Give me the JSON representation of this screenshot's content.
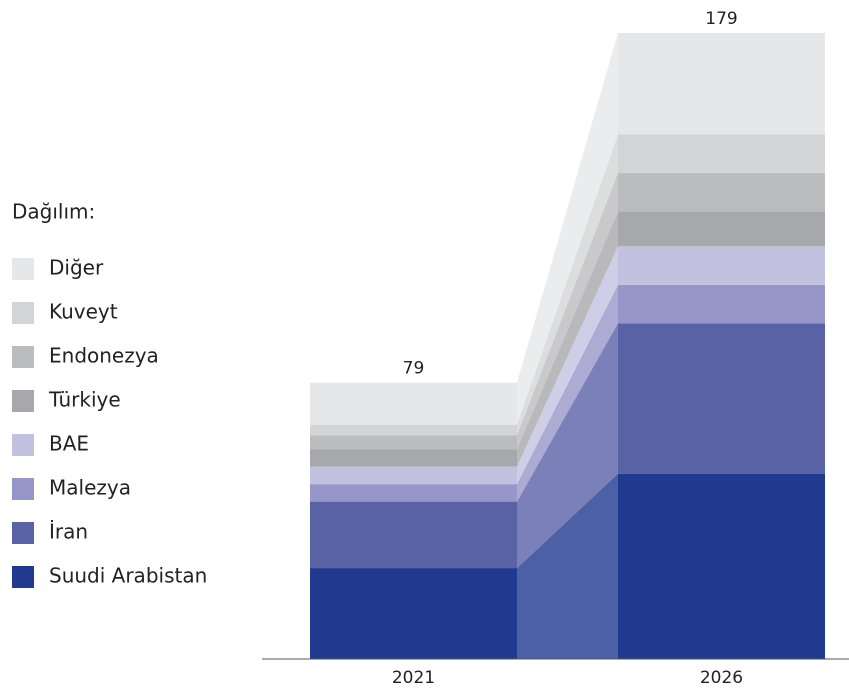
{
  "chart_data": {
    "type": "stacked-bar",
    "legend_title": "Dağılım:",
    "categories": [
      "2021",
      "2026"
    ],
    "totals": [
      79,
      179
    ],
    "series": [
      {
        "name": "Suudi Arabistan",
        "color": "#1f3a8f",
        "values": [
          26,
          53
        ]
      },
      {
        "name": "İran",
        "color": "#5a62a6",
        "values": [
          19,
          43
        ]
      },
      {
        "name": "Malezya",
        "color": "#9796c8",
        "values": [
          5,
          11
        ]
      },
      {
        "name": "BAE",
        "color": "#c2c2e0",
        "values": [
          5,
          11
        ]
      },
      {
        "name": "Türkiye",
        "color": "#a7a8ab",
        "values": [
          5,
          10
        ]
      },
      {
        "name": "Endonezya",
        "color": "#bbbcbe",
        "values": [
          4,
          11
        ]
      },
      {
        "name": "Kuveyt",
        "color": "#d3d4d5",
        "values": [
          3,
          11
        ]
      },
      {
        "name": "Diğer",
        "color": "#e6e7e8",
        "values": [
          12,
          29
        ]
      }
    ]
  }
}
